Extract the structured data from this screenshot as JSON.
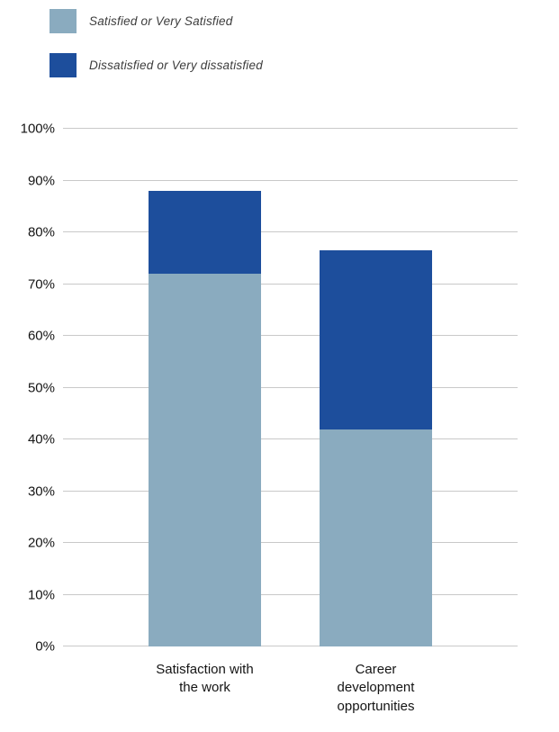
{
  "legend": {
    "items": [
      {
        "label": "Satisfied or Very Satisfied",
        "color": "#8aabbf"
      },
      {
        "label": "Dissatisfied or Very dissatisfied",
        "color": "#1d4e9c"
      }
    ]
  },
  "chart_data": {
    "type": "bar",
    "stacked": true,
    "title": "",
    "xlabel": "",
    "ylabel": "",
    "categories": [
      "Satisfaction with\nthe work",
      "Career\ndevelopment\nopportunities"
    ],
    "series": [
      {
        "name": "Satisfied or Very Satisfied",
        "color": "#8aabbf",
        "values": [
          72,
          42
        ]
      },
      {
        "name": "Dissatisfied or Very dissatisfied",
        "color": "#1d4e9c",
        "values": [
          16,
          34.5
        ]
      }
    ],
    "totals": [
      88,
      76.5
    ],
    "ylim": [
      0,
      100
    ],
    "ytick_step": 10,
    "ytick_suffix": "%",
    "grid": true,
    "legend_position": "top-left"
  }
}
